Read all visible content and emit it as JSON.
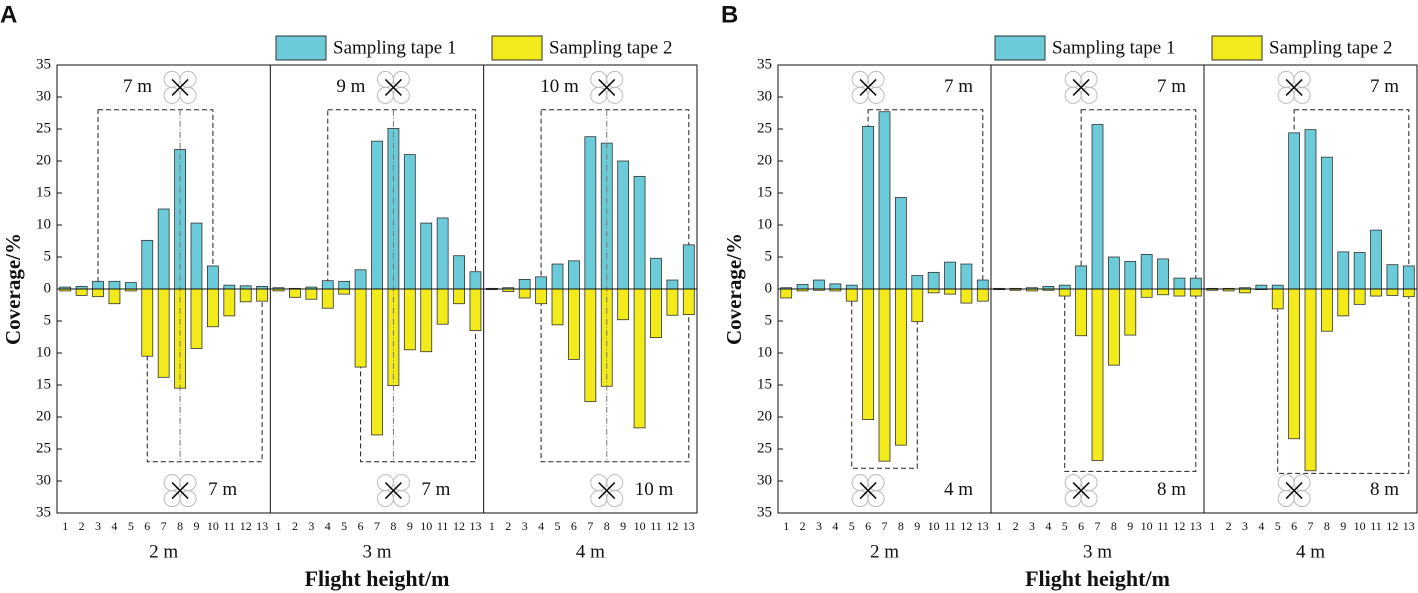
{
  "chart_data": [
    {
      "type": "bar",
      "label": "A",
      "xlabel": "Flight height/m",
      "ylabel": "Coverage/%",
      "ylim": [
        -35,
        35
      ],
      "yticks": [
        {
          "value": -35,
          "label": "35"
        },
        {
          "value": -30,
          "label": "30"
        },
        {
          "value": -25,
          "label": "25"
        },
        {
          "value": -20,
          "label": "20"
        },
        {
          "value": -15,
          "label": "15"
        },
        {
          "value": -10,
          "label": "10"
        },
        {
          "value": -5,
          "label": "5"
        },
        0,
        5,
        10,
        15,
        20,
        25,
        30,
        35
      ],
      "categories": [
        "1",
        "2",
        "3",
        "4",
        "5",
        "6",
        "7",
        "8",
        "9",
        "10",
        "11",
        "12",
        "13"
      ],
      "series": [
        {
          "name": "Sampling tape 1",
          "color": "#6ccbd8"
        },
        {
          "name": "Sampling tape 2",
          "color": "#f2ea1a"
        }
      ],
      "groups": [
        {
          "name": "2 m",
          "annotations": [
            "7 m",
            "7 m"
          ],
          "series": [
            {
              "values": [
                0.3,
                0.4,
                1.2,
                1.2,
                1.0,
                7.6,
                12.5,
                21.8,
                10.3,
                3.6,
                0.6,
                0.5,
                0.4
              ]
            },
            {
              "values": [
                -0.3,
                -1.0,
                -1.2,
                -2.3,
                -0.3,
                -10.5,
                -13.8,
                -15.5,
                -9.3,
                -5.9,
                -4.2,
                -2.0,
                -1.9
              ]
            }
          ]
        },
        {
          "name": "3 m",
          "annotations": [
            "9 m",
            "7 m"
          ],
          "series": [
            {
              "values": [
                0.2,
                0.1,
                0.3,
                1.3,
                1.2,
                3.0,
                23.1,
                25.1,
                21.0,
                10.3,
                11.1,
                5.2,
                2.7
              ]
            },
            {
              "values": [
                -0.3,
                -1.3,
                -1.6,
                -3.0,
                -0.8,
                -12.2,
                -22.8,
                -15.1,
                -9.5,
                -9.8,
                -5.5,
                -2.3,
                -6.5
              ]
            }
          ]
        },
        {
          "name": "4 m",
          "annotations": [
            "10 m",
            "10 m"
          ],
          "series": [
            {
              "values": [
                0.1,
                0.2,
                1.5,
                1.9,
                3.9,
                4.4,
                23.8,
                22.8,
                20.0,
                17.6,
                4.8,
                1.4,
                6.9
              ]
            },
            {
              "values": [
                -0.1,
                -0.4,
                -1.4,
                -2.3,
                -5.6,
                -11.0,
                -17.6,
                -15.2,
                -4.8,
                -21.7,
                -7.6,
                -4.1,
                -4.0
              ]
            }
          ]
        }
      ]
    },
    {
      "type": "bar",
      "label": "B",
      "xlabel": "Flight height/m",
      "ylabel": "Coverage/%",
      "ylim": [
        -35,
        35
      ],
      "yticks": [
        {
          "value": -35,
          "label": "35"
        },
        {
          "value": -30,
          "label": "30"
        },
        {
          "value": -25,
          "label": "25"
        },
        {
          "value": -20,
          "label": "20"
        },
        {
          "value": -15,
          "label": "15"
        },
        {
          "value": -10,
          "label": "10"
        },
        {
          "value": -5,
          "label": "5"
        },
        0,
        5,
        10,
        15,
        20,
        25,
        30,
        35
      ],
      "categories": [
        "1",
        "2",
        "3",
        "4",
        "5",
        "6",
        "7",
        "8",
        "9",
        "10",
        "11",
        "12",
        "13"
      ],
      "series": [
        {
          "name": "Sampling tape 1",
          "color": "#6ccbd8"
        },
        {
          "name": "Sampling tape 2",
          "color": "#f2ea1a"
        }
      ],
      "groups": [
        {
          "name": "2 m",
          "annotations": [
            "7 m",
            "4 m"
          ],
          "series": [
            {
              "values": [
                0.2,
                0.7,
                1.4,
                0.8,
                0.6,
                25.4,
                27.7,
                14.3,
                2.1,
                2.6,
                4.2,
                3.9,
                1.4
              ]
            },
            {
              "values": [
                -1.4,
                -0.3,
                -0.2,
                -0.3,
                -1.9,
                -20.4,
                -26.9,
                -24.4,
                -5.1,
                -0.6,
                -0.8,
                -2.2,
                -1.9
              ]
            }
          ]
        },
        {
          "name": "3 m",
          "annotations": [
            "7 m",
            "8 m"
          ],
          "series": [
            {
              "values": [
                0.1,
                0.1,
                0.2,
                0.4,
                0.6,
                3.6,
                25.7,
                5.0,
                4.3,
                5.4,
                4.7,
                1.7,
                1.7
              ]
            },
            {
              "values": [
                -0.1,
                -0.2,
                -0.3,
                -0.2,
                -1.1,
                -7.3,
                -26.8,
                -11.9,
                -7.2,
                -1.3,
                -0.9,
                -1.1,
                -1.1
              ]
            }
          ]
        },
        {
          "name": "4 m",
          "annotations": [
            "7 m",
            "8 m"
          ],
          "series": [
            {
              "values": [
                0.1,
                0.1,
                0.2,
                0.6,
                0.6,
                24.4,
                24.9,
                20.6,
                5.8,
                5.7,
                9.2,
                3.8,
                3.6
              ]
            },
            {
              "values": [
                -0.2,
                -0.3,
                -0.6,
                -0.1,
                -3.1,
                -23.4,
                -28.4,
                -6.6,
                -4.2,
                -2.4,
                -1.1,
                -1.0,
                -1.2
              ]
            }
          ]
        }
      ]
    }
  ]
}
